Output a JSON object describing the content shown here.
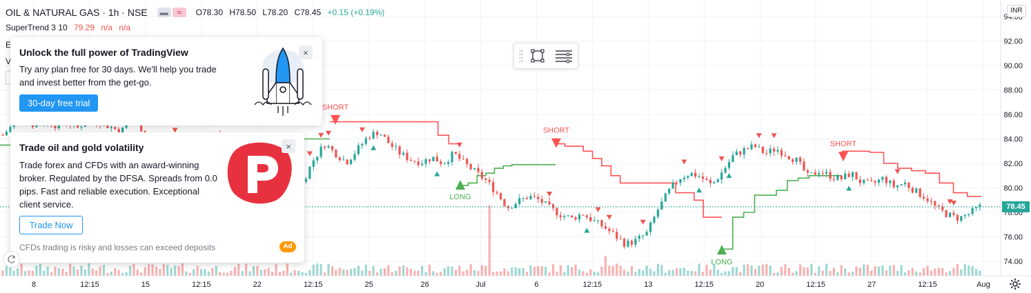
{
  "legend": {
    "symbol": "OIL & NATURAL GAS · 1h · NSE",
    "open": "O78.30",
    "high": "H78.50",
    "low": "L78.20",
    "close": "C78.45",
    "change": "+0.15 (+0.19%)"
  },
  "indicator": {
    "name": "SuperTrend 3 10",
    "value": "79.29",
    "v2": "n/a",
    "v3": "n/a"
  },
  "peek": {
    "line1": "E",
    "line2": "V"
  },
  "currency": "INR",
  "last_price": "78.45",
  "promo_tradingview": {
    "title": "Unlock the full power of TradingView",
    "body_line1": "Try any plan free for 30 days. We'll help you trade",
    "body_line2": "and invest better from the get-go.",
    "cta": "30-day free trial",
    "close": "×"
  },
  "promo_pepperstone": {
    "title": "Trade oil and gold volatility",
    "body_line1": "Trade forex and CFDs with an award-winning",
    "body_line2": "broker. Regulated by the DFSA. Spreads from 0.0",
    "body_line3": "pips. Fast and reliable execution. Exceptional",
    "body_line4": "client service.",
    "cta": "Trade Now",
    "disclaimer": "CFDs trading is risky and losses can exceed deposits",
    "badge": "Ad",
    "close": "×"
  },
  "colors": {
    "up": "#26a69a",
    "down": "#ef5350",
    "st_up": "#4caf50",
    "st_down": "#ff5252",
    "accent": "#2196f3"
  },
  "icons": {
    "toolbar": [
      "drag-handle-icon",
      "select-rectangle-icon",
      "object-tree-icon"
    ],
    "misc": [
      "rocket-icon",
      "pepperstone-logo-icon",
      "gear-icon",
      "scroll-back-icon"
    ]
  },
  "chart_data": {
    "type": "candlestick",
    "yticks": [
      "74.00",
      "76.00",
      "78.00",
      "80.00",
      "82.00",
      "84.00",
      "86.00",
      "88.00",
      "90.00",
      "92.00",
      "94.00"
    ],
    "ylim": [
      73.2,
      94.5
    ],
    "xticks": [
      "8",
      "12:15",
      "15",
      "12:15",
      "22",
      "12:15",
      "25",
      "26",
      "Jul",
      "6",
      "12:15",
      "13",
      "12:15",
      "20",
      "12:15",
      "27",
      "12:15",
      "Aug"
    ],
    "signals": [
      {
        "label": "SHORT",
        "price": 85.5
      },
      {
        "label": "LONG",
        "price": 80.3
      },
      {
        "label": "SHORT",
        "price": 83.6
      },
      {
        "label": "LONG",
        "price": 75.0
      },
      {
        "label": "SHORT",
        "price": 82.5
      }
    ],
    "close_path": [
      84.3,
      85.2,
      85.8,
      85.0,
      85.5,
      85.1,
      85.4,
      84.9,
      85.7,
      85.4,
      85.0,
      84.6,
      85.5,
      84.8,
      83.8,
      82.6,
      83.6,
      83.0,
      82.7,
      84.0,
      84.7,
      83.5,
      82.3,
      83.1,
      82.5,
      81.4,
      80.2,
      79.2,
      80.6,
      82.4,
      83.6,
      82.8,
      82.1,
      83.1,
      84.2,
      84.6,
      83.6,
      82.8,
      82.3,
      82.1,
      82.5,
      82.0,
      82.8,
      82.0,
      81.3,
      80.6,
      79.6,
      78.4,
      78.9,
      79.3,
      79.0,
      78.3,
      77.8,
      77.5,
      77.9,
      77.3,
      76.8,
      76.1,
      75.4,
      75.7,
      76.3,
      78.2,
      79.7,
      80.8,
      81.2,
      80.9,
      80.2,
      81.3,
      82.6,
      83.1,
      83.4,
      82.8,
      83.2,
      82.7,
      82.2,
      80.9,
      81.4,
      81.0,
      80.7,
      81.2,
      80.4,
      80.3,
      80.8,
      80.1,
      80.4,
      79.7,
      79.2,
      78.3,
      77.8,
      77.5,
      77.9,
      78.45
    ],
    "supertrend_up_1": [
      83.5,
      83.5,
      83.5,
      83.5,
      83.5,
      83.5,
      83.5,
      83.5,
      84.0,
      84.0,
      84.0,
      84.0,
      84.0,
      84.0,
      84.0
    ],
    "supertrend_down_1": [
      85.4,
      85.4,
      85.4,
      85.4,
      85.4,
      85.4,
      85.4,
      85.4,
      85.4,
      85.4,
      84.3,
      83.6
    ],
    "supertrend_up_2": [
      80.2,
      80.4,
      81.0,
      81.2,
      81.6,
      81.8,
      81.9,
      81.9,
      81.9,
      81.9,
      81.9
    ],
    "supertrend_down_2": [
      83.6,
      83.4,
      83.4,
      83.0,
      82.4,
      81.8,
      81.0,
      80.4,
      80.4,
      80.4,
      80.4,
      80.4,
      80.4,
      79.6,
      79.6,
      79.0,
      77.6,
      77.6
    ],
    "supertrend_up_3": [
      75.0,
      77.6,
      78.0,
      79.4,
      79.4,
      79.8,
      80.6,
      80.8,
      81.0,
      81.0,
      81.0
    ],
    "supertrend_down_3": [
      83.0,
      83.0,
      82.9,
      82.0,
      81.6,
      81.4,
      81.2,
      80.4,
      79.6,
      79.3
    ]
  }
}
